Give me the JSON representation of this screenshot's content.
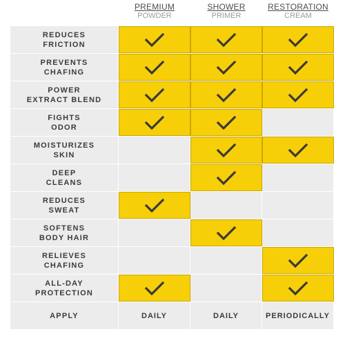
{
  "columns": [
    {
      "line1": "PREMIUM",
      "line2": "POWDER"
    },
    {
      "line1": "SHOWER",
      "line2": "PRIMER"
    },
    {
      "line1": "RESTORATION",
      "line2": "CREAM"
    }
  ],
  "rows": [
    {
      "label": "REDUCES\nFRICTION",
      "checks": [
        true,
        true,
        true
      ]
    },
    {
      "label": "PREVENTS\nCHAFING",
      "checks": [
        true,
        true,
        true
      ]
    },
    {
      "label": "POWER\nEXTRACT BLEND",
      "checks": [
        true,
        true,
        true
      ]
    },
    {
      "label": "FIGHTS\nODOR",
      "checks": [
        true,
        true,
        false
      ]
    },
    {
      "label": "MOISTURIZES\nSKIN",
      "checks": [
        false,
        true,
        true
      ]
    },
    {
      "label": "DEEP\nCLEANS",
      "checks": [
        false,
        true,
        false
      ]
    },
    {
      "label": "REDUCES\nSWEAT",
      "checks": [
        true,
        false,
        false
      ]
    },
    {
      "label": "SOFTENS\nBODY HAIR",
      "checks": [
        false,
        true,
        false
      ]
    },
    {
      "label": "RELIEVES\nCHAFING",
      "checks": [
        false,
        false,
        true
      ]
    },
    {
      "label": "ALL-DAY\nPROTECTION",
      "checks": [
        true,
        false,
        true
      ]
    }
  ],
  "apply": {
    "label": "APPLY",
    "values": [
      "DAILY",
      "DAILY",
      "PERIODICALLY"
    ]
  },
  "colors": {
    "highlight": "#f7cf09",
    "cell_bg": "#ececec",
    "text": "#3b3b3b",
    "check": "#3a3a3a"
  },
  "icons": {
    "check": "check-icon"
  }
}
